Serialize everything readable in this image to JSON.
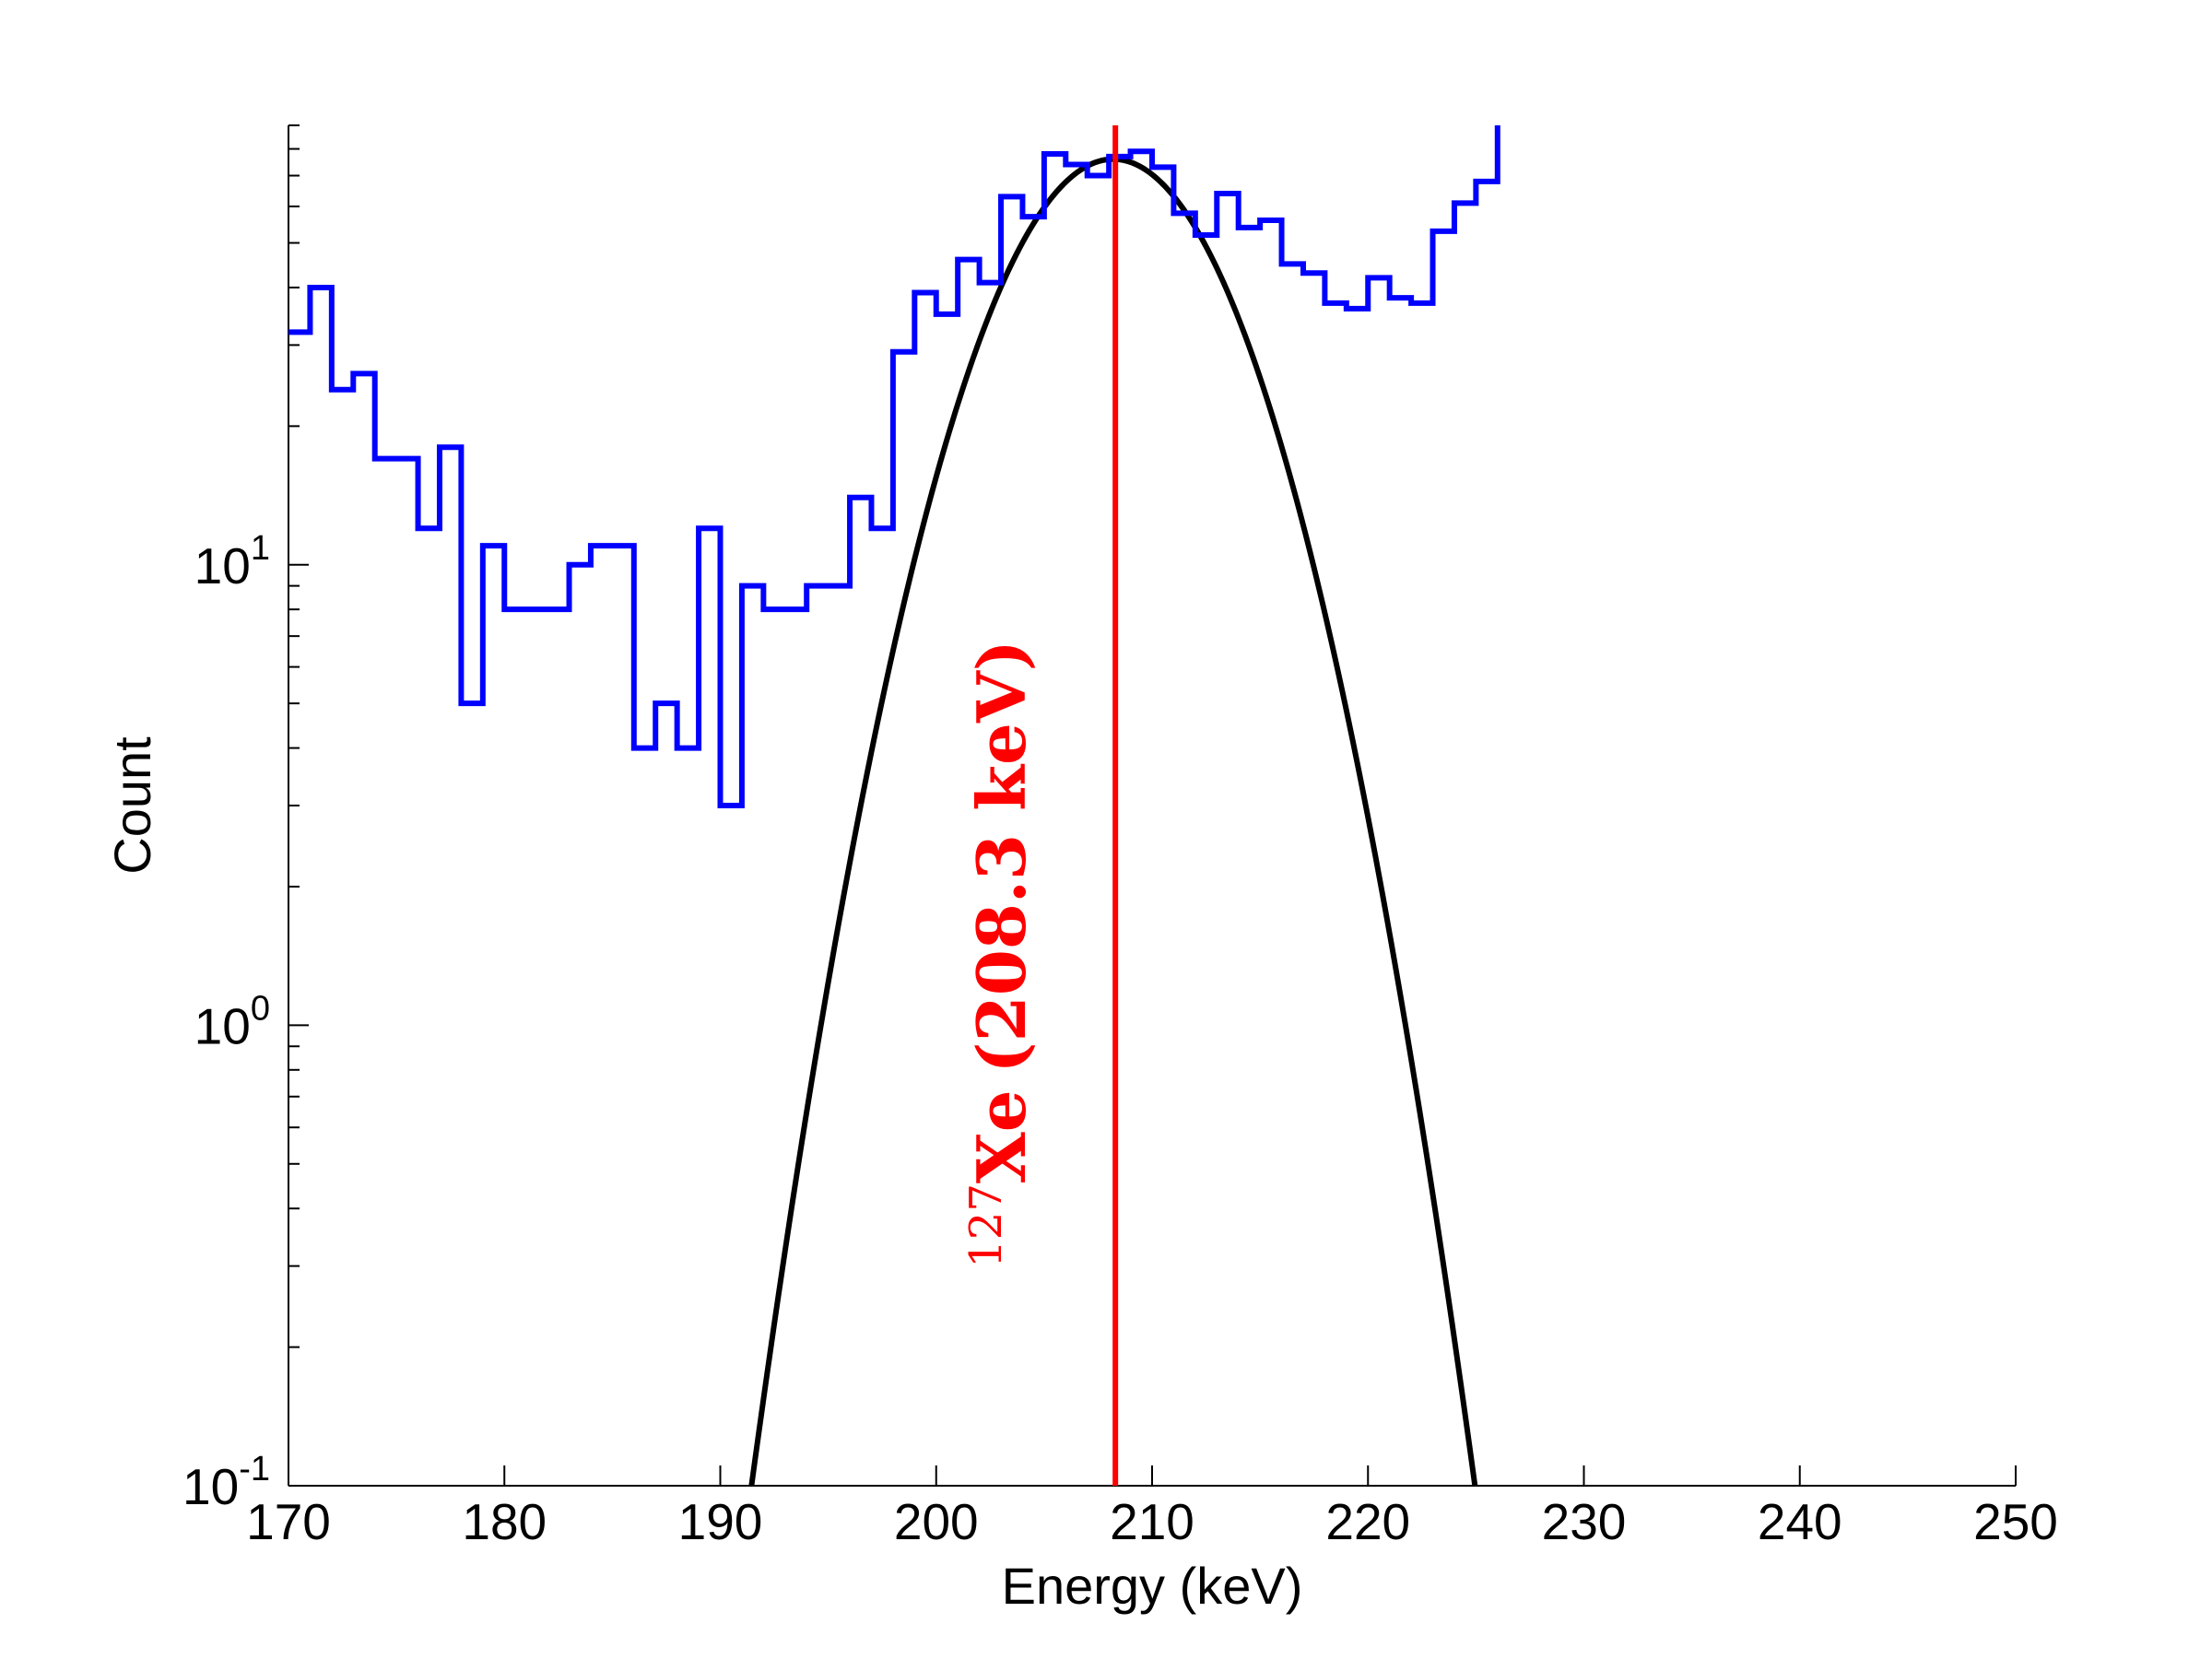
{
  "chart_data": {
    "type": "line",
    "title": "",
    "xlabel": "Energy (keV)",
    "ylabel": "Count",
    "xlim": [
      170,
      250
    ],
    "ylim": [
      0.1,
      90
    ],
    "yscale": "log",
    "grid": false,
    "x_ticks": [
      "170",
      "180",
      "190",
      "200",
      "210",
      "220",
      "230",
      "240",
      "250"
    ],
    "y_ticks": [
      {
        "value": 0.1,
        "base": "10",
        "exp": "-1"
      },
      {
        "value": 1,
        "base": "10",
        "exp": "0"
      },
      {
        "value": 10,
        "base": "10",
        "exp": "1"
      }
    ],
    "histogram": {
      "color": "#0000ff",
      "bin_width": 1,
      "bin_starts": [
        170,
        171,
        172,
        173,
        174,
        175,
        176,
        177,
        178,
        179,
        180,
        181,
        182,
        183,
        184,
        185,
        186,
        187,
        188,
        189,
        190,
        191,
        192,
        193,
        194,
        195,
        196,
        197,
        198,
        199,
        200,
        201,
        202,
        203,
        204,
        205,
        206,
        207,
        208,
        209,
        210,
        211,
        212,
        213,
        214,
        215,
        216,
        217,
        218,
        219,
        220,
        221,
        222,
        223,
        224,
        225
      ],
      "counts": [
        32,
        40,
        24,
        26,
        17,
        17,
        12,
        18,
        5,
        11,
        8,
        8,
        8,
        10,
        11,
        11,
        4,
        5,
        4,
        12,
        3,
        9,
        8,
        8,
        9,
        9,
        14,
        12,
        29,
        39,
        35,
        46,
        41,
        63,
        57,
        78,
        74,
        70,
        77,
        79,
        73,
        58,
        52,
        64,
        54,
        56,
        45,
        43,
        37,
        36,
        42,
        38,
        37,
        53,
        61,
        68
      ]
    },
    "fit_curve": {
      "color": "#000000",
      "model": "gaussian",
      "amplitude": 76,
      "mean": 208.2,
      "sigma": 4.6
    },
    "marker_line": {
      "color": "#ff0000",
      "x": 208.3,
      "label_mass": "127",
      "label_element": "Xe",
      "label_energy": "(208.3 keV)"
    }
  }
}
